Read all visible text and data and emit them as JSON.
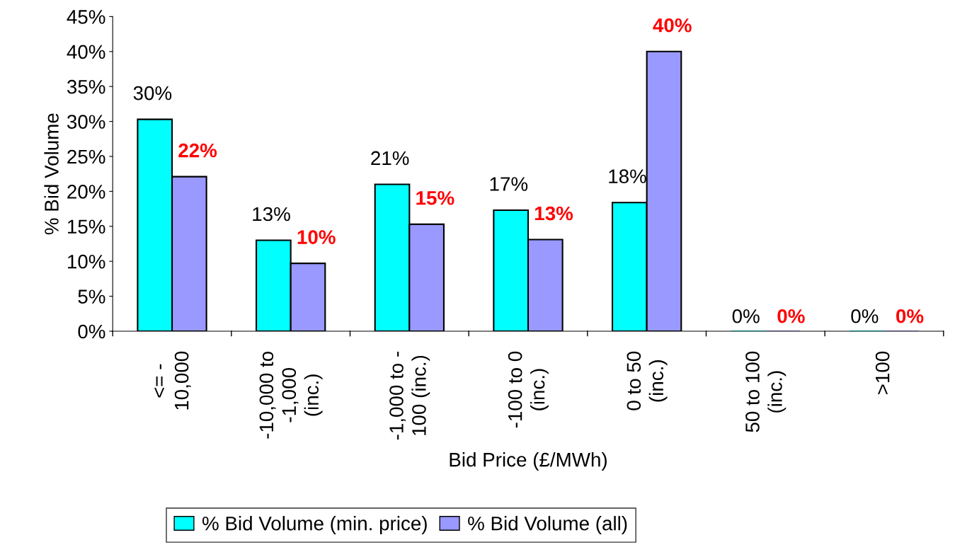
{
  "chart_data": {
    "type": "bar",
    "xlabel": "Bid Price (£/MWh)",
    "ylabel": "% Bid Volume",
    "categories": [
      "<= -\n10,000",
      "-10,000 to\n-1,000\n(inc.)",
      "-1,000 to -\n100 (inc.)",
      "-100 to 0\n(inc.)",
      "0 to 50\n(inc.)",
      "50 to 100\n(inc.)",
      ">100"
    ],
    "series": [
      {
        "name": "% Bid Volume (min. price)",
        "color": "#00ffff",
        "values": [
          30.3,
          13,
          21,
          17.3,
          18.4,
          0,
          0
        ],
        "value_labels": [
          "30%",
          "13%",
          "21%",
          "17%",
          "18%",
          "0%",
          "0%"
        ]
      },
      {
        "name": "% Bid Volume (all)",
        "color": "#9999ff",
        "values": [
          22.1,
          9.7,
          15.3,
          13.1,
          40,
          0,
          0
        ],
        "value_labels": [
          "22%",
          "10%",
          "15%",
          "13%",
          "40%",
          "0%",
          "0%"
        ]
      }
    ],
    "ylim": [
      0,
      45
    ],
    "yticks": [
      {
        "value": 0,
        "label": "0%"
      },
      {
        "value": 5,
        "label": "5%"
      },
      {
        "value": 10,
        "label": "10%"
      },
      {
        "value": 15,
        "label": "15%"
      },
      {
        "value": 20,
        "label": "20%"
      },
      {
        "value": 25,
        "label": "25%"
      },
      {
        "value": 30,
        "label": "30%"
      },
      {
        "value": 35,
        "label": "35%"
      },
      {
        "value": 40,
        "label": "40%"
      },
      {
        "value": 45,
        "label": "45%"
      }
    ],
    "grid": false,
    "legend": "bottom"
  }
}
